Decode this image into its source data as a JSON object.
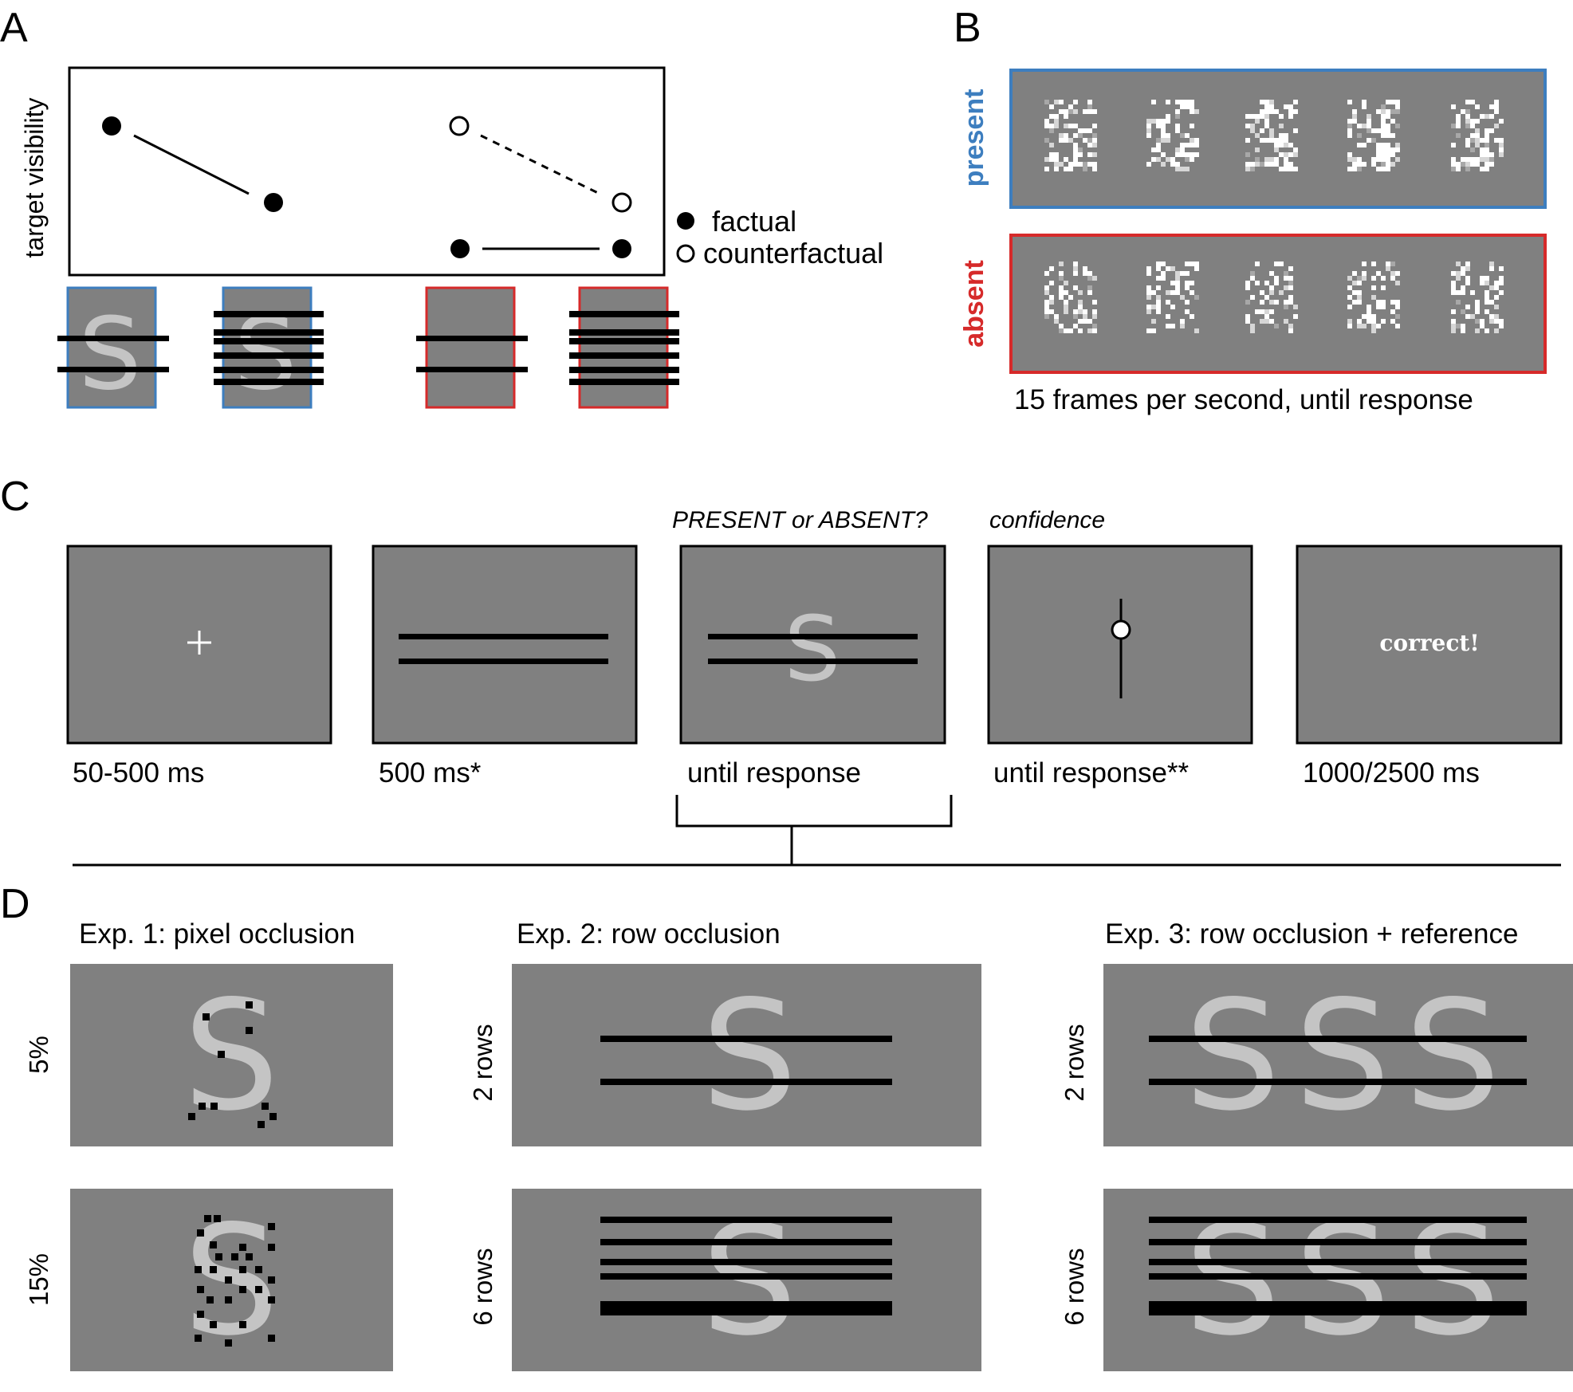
{
  "colors": {
    "screen_gray": "#808080",
    "letter_gray": "#c4c4c4",
    "present_blue": "#3d7ebf",
    "absent_red": "#d62a2a"
  },
  "panelA": {
    "letter": "A",
    "ylabel": "target visibility",
    "legend": {
      "factual": "factual",
      "counterfactual": "counterfactual"
    },
    "stimulus_letter": "S"
  },
  "panelB": {
    "letter": "B",
    "present_label": "present",
    "absent_label": "absent",
    "caption": "15 frames per second, until response"
  },
  "panelC": {
    "letter": "C",
    "question": "PRESENT or ABSENT?",
    "confidence": "confidence",
    "stimulus_letter": "S",
    "feedback": "correct!",
    "timings": [
      "50-500 ms",
      "500 ms*",
      "until response",
      "until response**",
      "1000/2500 ms"
    ]
  },
  "panelD": {
    "letter": "D",
    "titles": [
      "Exp. 1: pixel occlusion",
      "Exp. 2: row occlusion",
      "Exp. 3: row occlusion + reference"
    ],
    "exp1_rows": [
      "5%",
      "15%"
    ],
    "exp2_rows": [
      "2 rows",
      "6 rows"
    ],
    "exp3_rows": [
      "2 rows",
      "6 rows"
    ],
    "stimulus_letter": "S"
  }
}
